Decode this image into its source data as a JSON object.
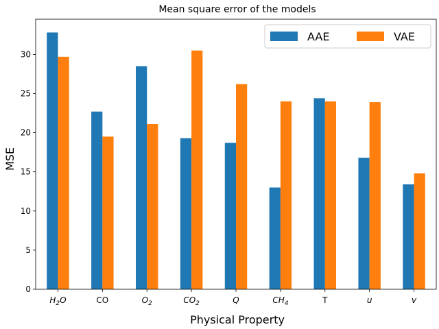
{
  "chart_data": {
    "type": "bar",
    "title": "Mean square error of the models",
    "xlabel": "Physical Property",
    "ylabel": "MSE",
    "ylim": [
      0,
      34.5
    ],
    "yticks": [
      0,
      5,
      10,
      15,
      20,
      25,
      30
    ],
    "grid": false,
    "legend_position": "top-right",
    "categories": [
      {
        "base": "H",
        "sub": "2",
        "rest": "O",
        "italic": true
      },
      {
        "base": "CO",
        "italic": false
      },
      {
        "base": "O",
        "sub": "2",
        "italic": true
      },
      {
        "base": "CO",
        "sub": "2",
        "italic": true
      },
      {
        "base": "Q",
        "italic": true
      },
      {
        "base": "CH",
        "sub": "4",
        "italic": true
      },
      {
        "base": "T",
        "italic": false
      },
      {
        "base": "u",
        "italic": true
      },
      {
        "base": "v",
        "italic": true
      }
    ],
    "series": [
      {
        "name": "AAE",
        "color": "#1f77b4",
        "values": [
          32.8,
          22.7,
          28.5,
          19.3,
          18.7,
          13.0,
          24.4,
          16.8,
          13.4
        ]
      },
      {
        "name": "VAE",
        "color": "#ff7f0e",
        "values": [
          29.7,
          19.5,
          21.1,
          30.5,
          26.2,
          24.0,
          24.0,
          23.9,
          14.8
        ]
      }
    ]
  }
}
